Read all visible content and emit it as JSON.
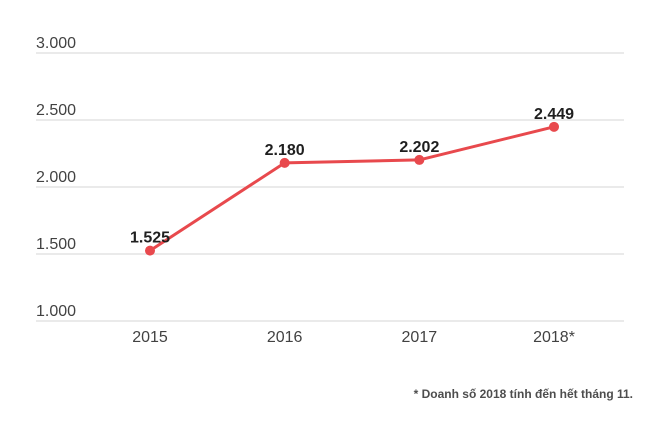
{
  "chart_data": {
    "type": "line",
    "categories": [
      "2015",
      "2016",
      "2017",
      "2018*"
    ],
    "values": [
      1525,
      2180,
      2202,
      2449
    ],
    "value_labels": [
      "1.525",
      "2.180",
      "2.202",
      "2.449"
    ],
    "y_ticks": [
      1000,
      1500,
      2000,
      2500,
      3000
    ],
    "y_tick_labels": [
      "1.000",
      "1.500",
      "2.000",
      "2.500",
      "3.000"
    ],
    "ylim": [
      1000,
      3000
    ],
    "grid": true,
    "legend": "none",
    "line_color": "#e8494d",
    "point_color": "#e8494d"
  },
  "footnote": "* Doanh số 2018 tính đến hết tháng 11."
}
